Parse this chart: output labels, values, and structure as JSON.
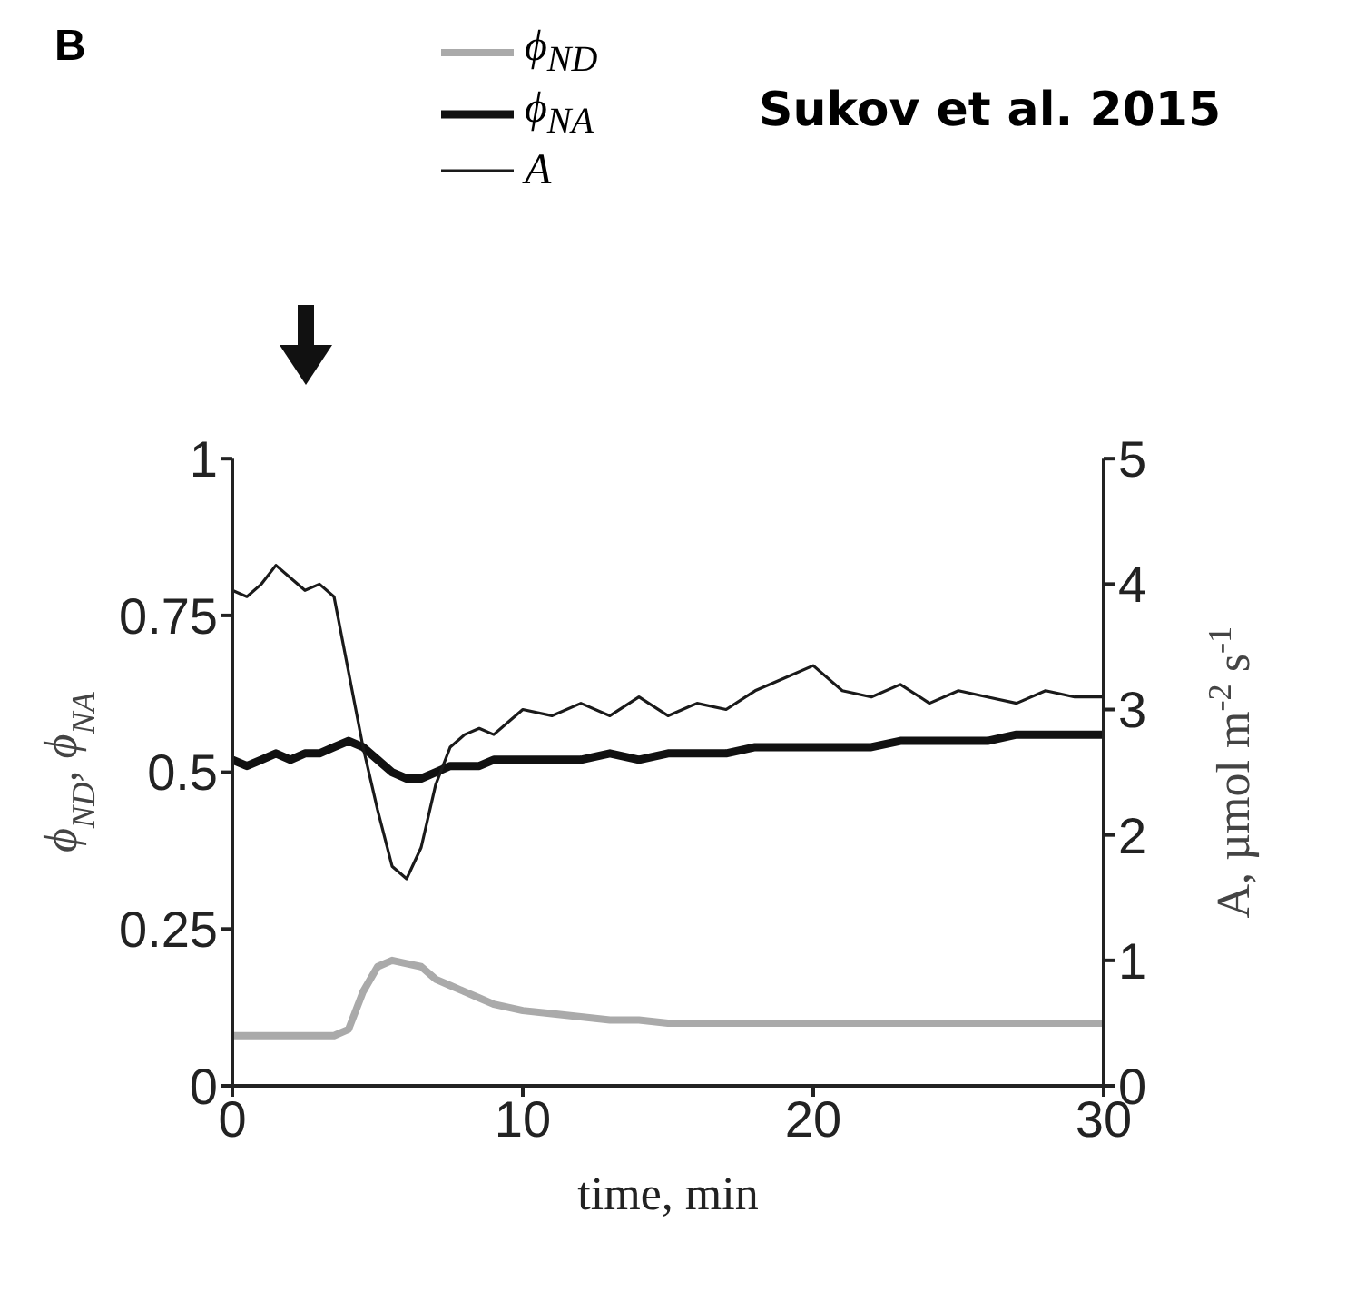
{
  "chart_data": {
    "type": "line",
    "annotations": [
      "B",
      "Sukov et al. 2015"
    ],
    "xlabel": "time, min",
    "ylabel": "ϕ$_{ND}$, ϕ$_{NA}$",
    "y2label": "A, µmol m$^{-2}$ s$^{-1}$",
    "x": [
      0,
      0.5,
      1,
      1.5,
      2,
      2.5,
      3,
      3.5,
      4,
      4.5,
      5,
      5.5,
      6,
      6.5,
      7,
      7.5,
      8,
      8.5,
      9,
      9.5,
      10,
      11,
      12,
      13,
      14,
      15,
      16,
      17,
      18,
      19,
      20,
      21,
      22,
      23,
      24,
      25,
      26,
      27,
      28,
      29,
      30
    ],
    "series": [
      {
        "name": "ϕ$_{ND}$",
        "color": "#aaaaaa",
        "values": [
          0.08,
          0.08,
          0.08,
          0.08,
          0.08,
          0.08,
          0.08,
          0.08,
          0.09,
          0.15,
          0.19,
          0.2,
          0.195,
          0.19,
          0.17,
          0.16,
          0.15,
          0.14,
          0.13,
          0.125,
          0.12,
          0.115,
          0.11,
          0.105,
          0.105,
          0.1,
          0.1,
          0.1,
          0.1,
          0.1,
          0.1,
          0.1,
          0.1,
          0.1,
          0.1,
          0.1,
          0.1,
          0.1,
          0.1,
          0.1,
          0.1
        ]
      },
      {
        "name": "ϕ$_{NA}$",
        "color": "#111111",
        "values": [
          0.52,
          0.51,
          0.52,
          0.53,
          0.52,
          0.53,
          0.53,
          0.54,
          0.55,
          0.54,
          0.52,
          0.5,
          0.49,
          0.49,
          0.5,
          0.51,
          0.51,
          0.51,
          0.52,
          0.52,
          0.52,
          0.52,
          0.52,
          0.53,
          0.52,
          0.53,
          0.53,
          0.53,
          0.54,
          0.54,
          0.54,
          0.54,
          0.54,
          0.55,
          0.55,
          0.55,
          0.55,
          0.56,
          0.56,
          0.56,
          0.56
        ]
      },
      {
        "name": "A",
        "color": "#1a1a1a",
        "axis": "y2",
        "values": [
          3.95,
          3.9,
          4.0,
          4.15,
          4.05,
          3.95,
          4.0,
          3.9,
          3.3,
          2.7,
          2.2,
          1.75,
          1.65,
          1.9,
          2.4,
          2.7,
          2.8,
          2.85,
          2.8,
          2.9,
          3.0,
          2.95,
          3.05,
          2.95,
          3.1,
          2.95,
          3.05,
          3.0,
          3.15,
          3.25,
          3.35,
          3.15,
          3.1,
          3.2,
          3.05,
          3.15,
          3.1,
          3.05,
          3.15,
          3.1,
          3.1
        ]
      }
    ],
    "xlim": [
      0,
      30
    ],
    "xticks": [
      0,
      10,
      20,
      30
    ],
    "ylim": [
      0,
      1
    ],
    "yticks": [
      0,
      0.25,
      0.5,
      0.75,
      1
    ],
    "y2lim": [
      0,
      5
    ],
    "y2ticks": [
      0,
      1,
      2,
      3,
      4,
      5
    ],
    "grid": false,
    "legend": "top",
    "marker": "none",
    "line_style": "solid"
  }
}
